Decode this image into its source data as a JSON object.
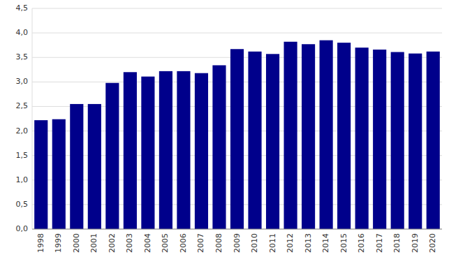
{
  "chart_data": {
    "type": "bar",
    "categories": [
      "1998",
      "1999",
      "2000",
      "2001",
      "2002",
      "2003",
      "2004",
      "2005",
      "2006",
      "2007",
      "2008",
      "2009",
      "2010",
      "2011",
      "2012",
      "2013",
      "2014",
      "2015",
      "2016",
      "2017",
      "2018",
      "2019",
      "2020"
    ],
    "values": [
      2.22,
      2.24,
      2.55,
      2.55,
      2.98,
      3.2,
      3.11,
      3.22,
      3.22,
      3.18,
      3.34,
      3.67,
      3.62,
      3.57,
      3.82,
      3.77,
      3.85,
      3.8,
      3.7,
      3.66,
      3.61,
      3.58,
      3.62
    ],
    "color": "#00008B",
    "ylim": [
      0,
      4.5
    ],
    "yticks": [
      {
        "value": 0.0,
        "label": "0,0"
      },
      {
        "value": 0.5,
        "label": "0,5"
      },
      {
        "value": 1.0,
        "label": "1,0"
      },
      {
        "value": 1.5,
        "label": "1,5"
      },
      {
        "value": 2.0,
        "label": "2,0"
      },
      {
        "value": 2.5,
        "label": "2,5"
      },
      {
        "value": 3.0,
        "label": "3,0"
      },
      {
        "value": 3.5,
        "label": "3,5"
      },
      {
        "value": 4.0,
        "label": "4,0"
      },
      {
        "value": 4.5,
        "label": "4,5"
      }
    ],
    "grid": true
  }
}
